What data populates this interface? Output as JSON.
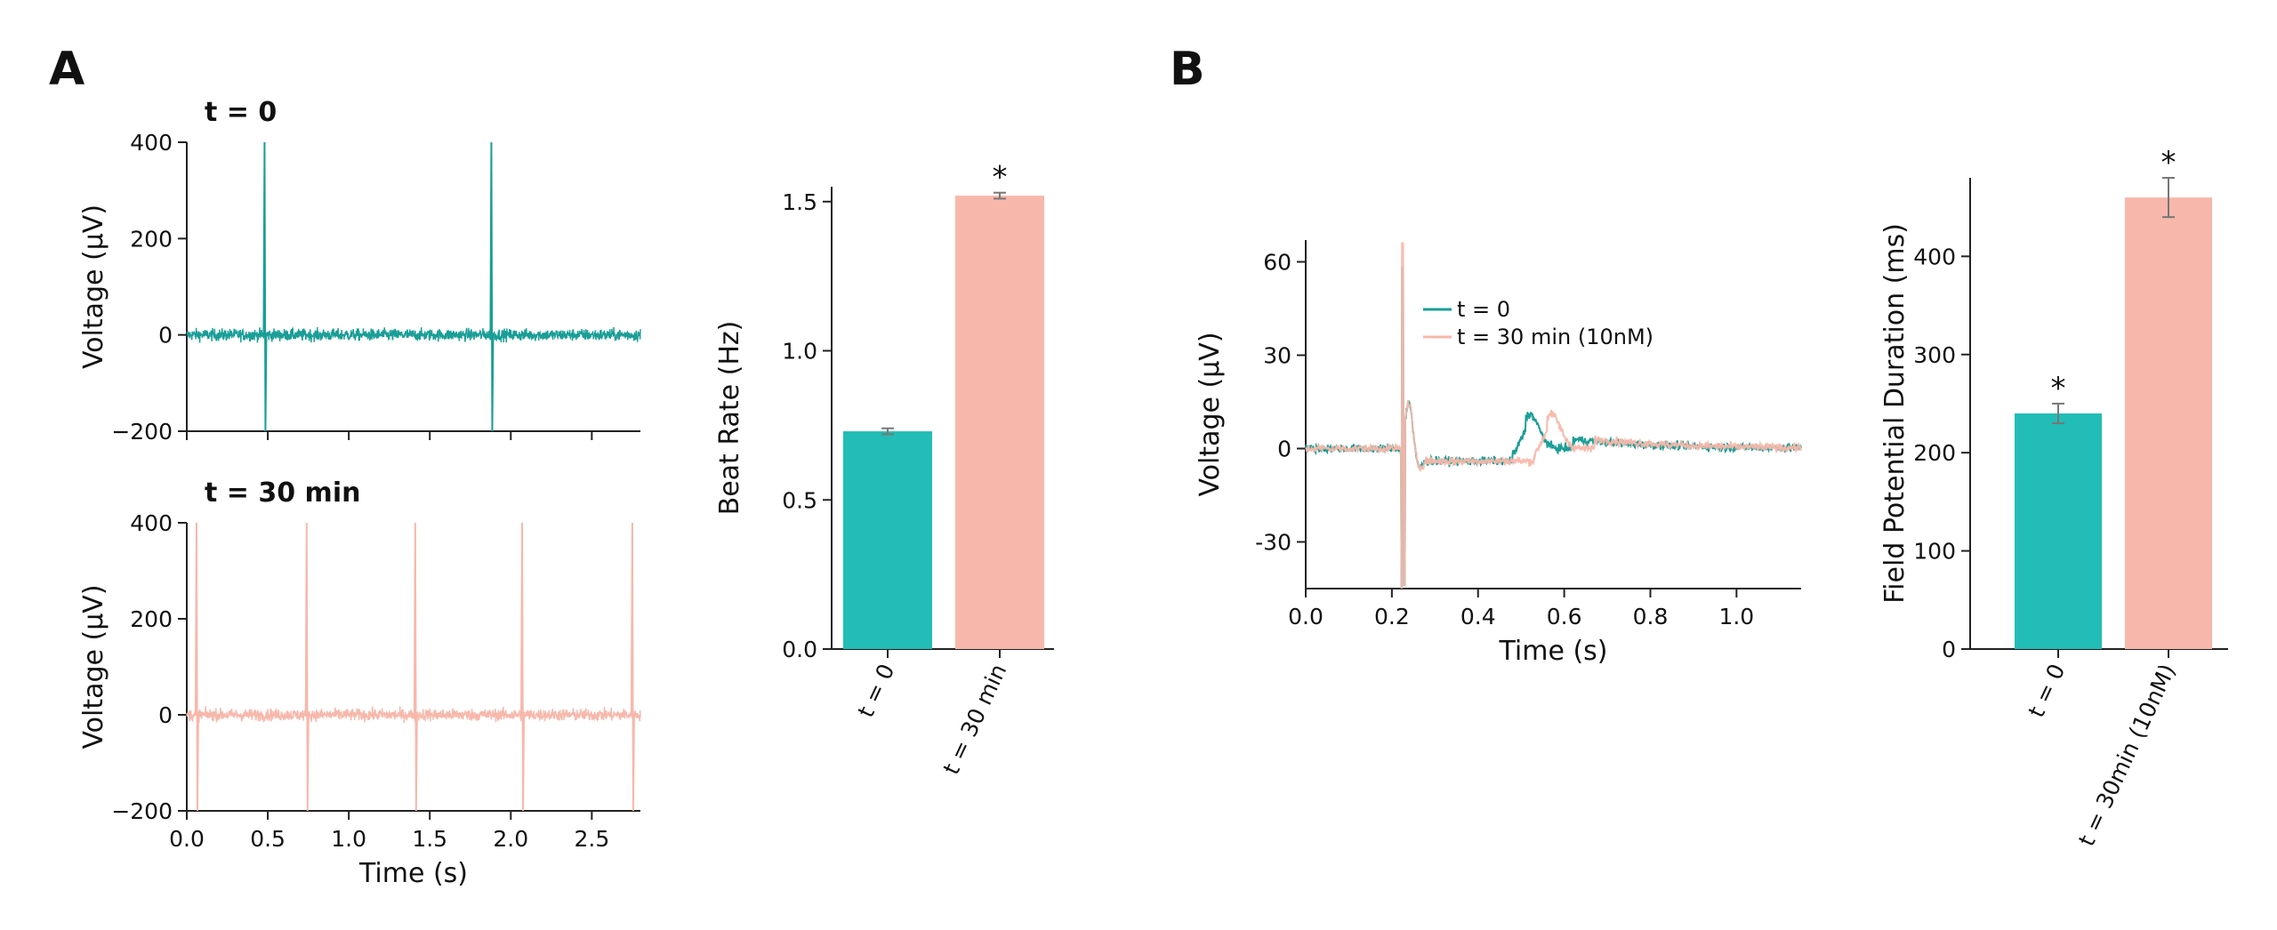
{
  "panels": {
    "a": {
      "letter": "A"
    },
    "b": {
      "letter": "B"
    }
  },
  "colors": {
    "teal_trace": "#1a9e97",
    "teal_bar": "#22bdb6",
    "salmon": "#f7b8ab",
    "error_bar": "#777777"
  },
  "chart_data": [
    {
      "id": "trace-t0",
      "type": "line",
      "title": "t = 0",
      "xlabel": "",
      "ylabel": "Voltage (µV)",
      "xlim": [
        0,
        2.8
      ],
      "ylim": [
        -200,
        400
      ],
      "yticks": [
        -200,
        0,
        200,
        400
      ],
      "ytick_labels": [
        "−200",
        "0",
        "200",
        "400"
      ],
      "xticks": [
        0,
        0.5,
        1.0,
        1.5,
        2.0,
        2.5
      ],
      "xtick_labels": [],
      "color": "#1a9e97",
      "noise_amplitude_uV": 18,
      "spike_times_s": [
        0.48,
        1.88
      ],
      "spike_max_uV": 400,
      "spike_min_uV": -200
    },
    {
      "id": "trace-t30",
      "type": "line",
      "title": "t = 30 min",
      "xlabel": "Time (s)",
      "ylabel": "Voltage (µV)",
      "xlim": [
        0,
        2.8
      ],
      "ylim": [
        -200,
        400
      ],
      "yticks": [
        -200,
        0,
        200,
        400
      ],
      "ytick_labels": [
        "−200",
        "0",
        "200",
        "400"
      ],
      "xticks": [
        0,
        0.5,
        1.0,
        1.5,
        2.0,
        2.5
      ],
      "xtick_labels": [
        "0.0",
        "0.5",
        "1.0",
        "1.5",
        "2.0",
        "2.5"
      ],
      "color": "#f7b8ab",
      "noise_amplitude_uV": 18,
      "spike_times_s": [
        0.06,
        0.74,
        1.41,
        2.07,
        2.75
      ],
      "spike_max_uV": 400,
      "spike_min_uV": -200
    },
    {
      "id": "beat-rate",
      "type": "bar",
      "categories": [
        "t = 0",
        "t = 30 min"
      ],
      "values": [
        0.73,
        1.52
      ],
      "errors": [
        0.01,
        0.01
      ],
      "significance": [
        "",
        "*"
      ],
      "ylabel": "Beat Rate (Hz)",
      "ylim": [
        0,
        1.55
      ],
      "yticks": [
        0,
        0.5,
        1.0,
        1.5
      ],
      "ytick_labels": [
        "0.0",
        "0.5",
        "1.0",
        "1.5"
      ],
      "colors": [
        "#22bdb6",
        "#f7b8ab"
      ]
    },
    {
      "id": "field-potential",
      "type": "line",
      "xlabel": "Time (s)",
      "ylabel": "Voltage (µV)",
      "xlim": [
        0,
        1.15
      ],
      "ylim": [
        -45,
        67
      ],
      "yticks": [
        -30,
        0,
        30,
        60
      ],
      "ytick_labels": [
        "-30",
        "0",
        "30",
        "60"
      ],
      "xticks": [
        0,
        0.2,
        0.4,
        0.6,
        0.8,
        1.0
      ],
      "xtick_labels": [
        "0.0",
        "0.2",
        "0.4",
        "0.6",
        "0.8",
        "1.0"
      ],
      "legend": {
        "position": "upper-left-center",
        "entries": [
          "t = 0",
          "t = 30 min (10nM)"
        ]
      },
      "series": [
        {
          "name": "t = 0",
          "color": "#1a9e97",
          "spike_time_s": 0.225,
          "repol_time_s": 0.52,
          "repol_peak_uV": 11
        },
        {
          "name": "t = 30 min (10nM)",
          "color": "#f7b8ab",
          "spike_time_s": 0.225,
          "repol_time_s": 0.57,
          "repol_peak_uV": 11
        }
      ]
    },
    {
      "id": "fpd",
      "type": "bar",
      "categories": [
        "t = 0",
        "t = 30min (10nM)"
      ],
      "values": [
        240,
        460
      ],
      "errors": [
        10,
        20
      ],
      "significance": [
        "*",
        "*"
      ],
      "ylabel": "Field Potential Duration (ms)",
      "ylim": [
        0,
        480
      ],
      "yticks": [
        0,
        100,
        200,
        300,
        400
      ],
      "ytick_labels": [
        "0",
        "100",
        "200",
        "300",
        "400"
      ],
      "colors": [
        "#22bdb6",
        "#f7b8ab"
      ]
    }
  ]
}
